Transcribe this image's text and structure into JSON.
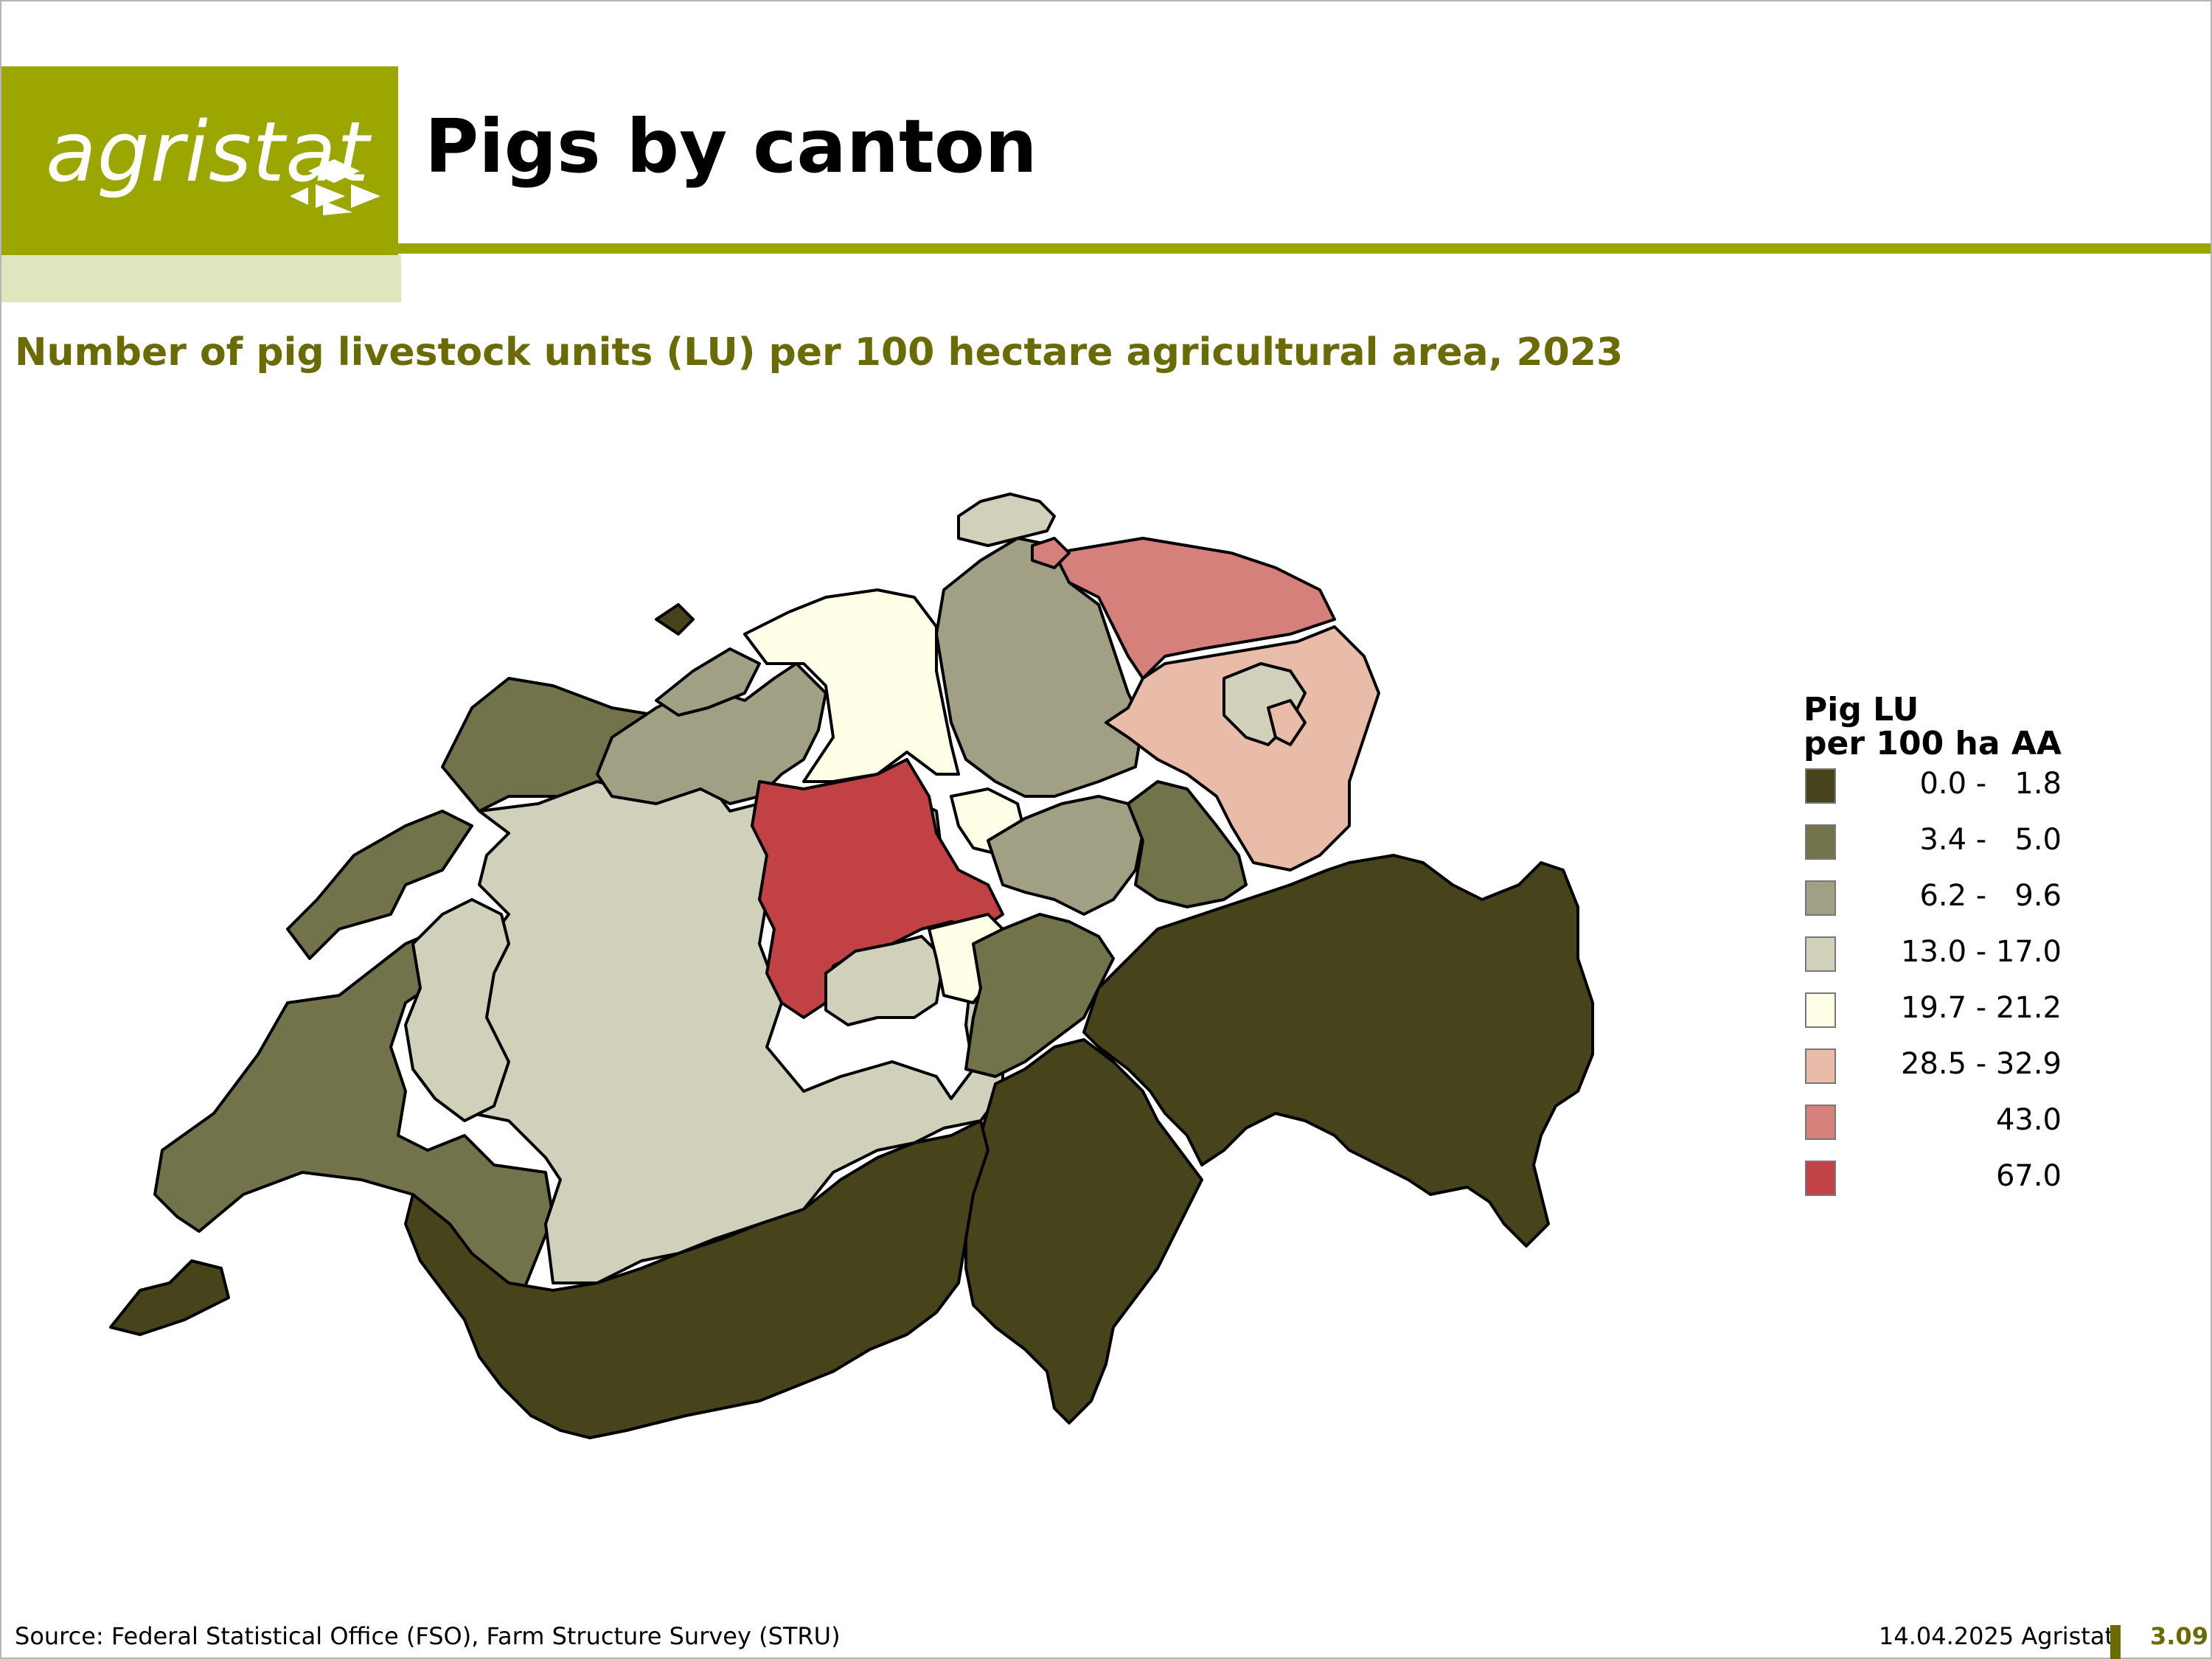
{
  "header": {
    "logo_text": "agristat",
    "title": "Pigs by canton"
  },
  "subtitle": "Number of pig livestock units (LU) per 100 hectare agricultural area, 2023",
  "legend": {
    "title_line1": "Pig LU",
    "title_line2": "per 100 ha AA",
    "classes": [
      {
        "label": "0.0 -   1.8",
        "color": "#47441c"
      },
      {
        "label": "3.4 -   5.0",
        "color": "#73734b"
      },
      {
        "label": "6.2 -   9.6",
        "color": "#a1a085"
      },
      {
        "label": "13.0 - 17.0",
        "color": "#d1d0ba"
      },
      {
        "label": "19.7 - 21.2",
        "color": "#ffffe8"
      },
      {
        "label": "28.5 - 32.9",
        "color": "#e9bca9"
      },
      {
        "label": "43.0",
        "color": "#d5807a"
      },
      {
        "label": "67.0",
        "color": "#c24144"
      }
    ]
  },
  "map_colors": {
    "dark": "#47441c",
    "olive": "#73734b",
    "mid": "#a1a085",
    "light": "#d1d0ba",
    "cream": "#ffffe8",
    "peach": "#e9bca9",
    "rose": "#d5807a",
    "red": "#c24144",
    "border": "#000000"
  },
  "footer": {
    "source": "Source: Federal Statistical Office (FSO), Farm Structure Survey (STRU)",
    "date": "14.04.2025 Agristat",
    "page": "3.09"
  }
}
